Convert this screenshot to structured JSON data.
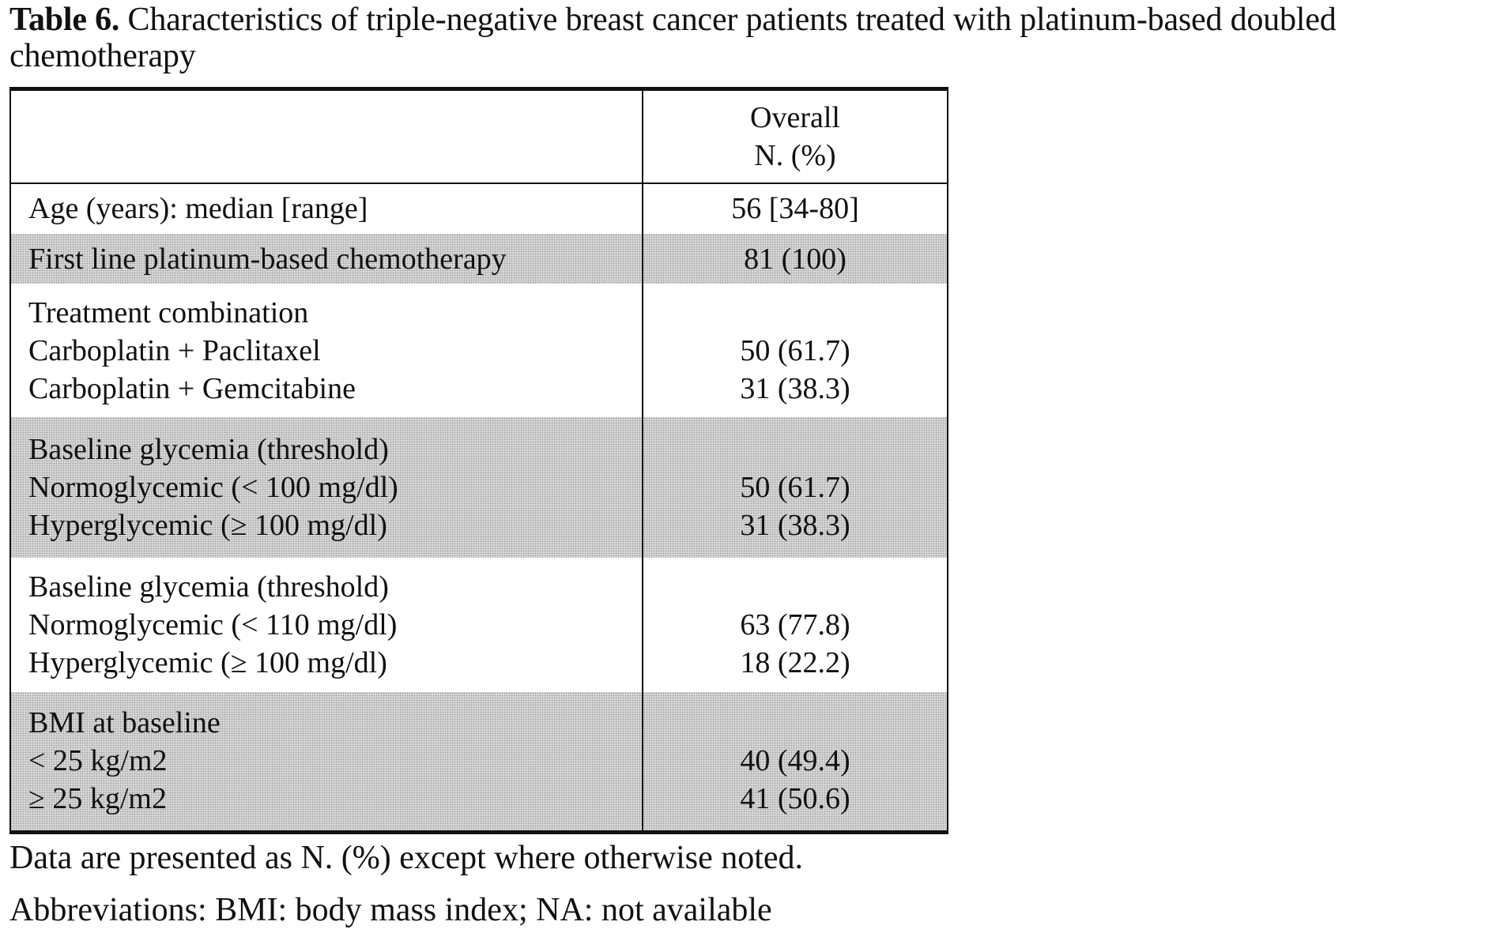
{
  "caption": {
    "label": "Table 6.",
    "text": " Characteristics of triple-negative breast cancer patients treated with platinum-based doubled chemotherapy"
  },
  "table": {
    "header": {
      "col1": "",
      "col2_line1": "Overall",
      "col2_line2": "N. (%)"
    },
    "rows": [
      {
        "label": "Age (years): median [range]",
        "value": "56 [34-80]"
      },
      {
        "label": "First line platinum-based chemotherapy",
        "value": "81 (100)"
      },
      {
        "heading": "Treatment combination",
        "items": [
          {
            "label": "Carboplatin + Paclitaxel",
            "value": "50 (61.7)"
          },
          {
            "label": "Carboplatin + Gemcitabine",
            "value": "31 (38.3)"
          }
        ]
      },
      {
        "heading": "Baseline glycemia (threshold)",
        "items": [
          {
            "label": "Normoglycemic (< 100 mg/dl)",
            "value": "50 (61.7)"
          },
          {
            "label": "Hyperglycemic (≥ 100 mg/dl)",
            "value": "31 (38.3)"
          }
        ]
      },
      {
        "heading": "Baseline glycemia (threshold)",
        "items": [
          {
            "label": "Normoglycemic (< 110 mg/dl)",
            "value": "63 (77.8)"
          },
          {
            "label": "Hyperglycemic (≥ 100 mg/dl)",
            "value": "18 (22.2)"
          }
        ]
      },
      {
        "heading": "BMI at baseline",
        "items": [
          {
            "label": "< 25 kg/m2",
            "value": "40 (49.4)"
          },
          {
            "label": "≥ 25 kg/m2",
            "value": "41 (50.6)"
          }
        ]
      }
    ]
  },
  "notes": {
    "line1": "Data are presented as N. (%) except where otherwise noted.",
    "line2": "Abbreviations:  BMI: body mass index; NA: not available"
  },
  "colors": {
    "text": "#111111",
    "shading": "#d8d8d8",
    "rule": "#111111"
  }
}
